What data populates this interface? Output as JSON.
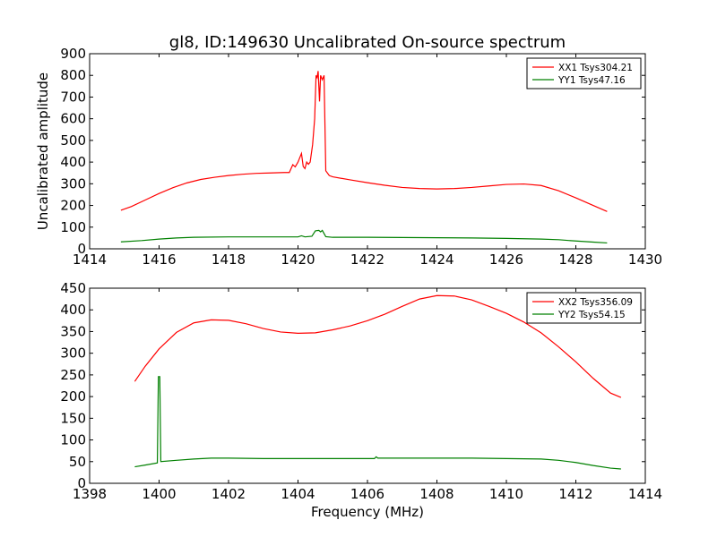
{
  "chart_data": [
    {
      "type": "line",
      "title": "gl8, ID:149630 Uncalibrated On-source spectrum",
      "xlabel": "",
      "ylabel": "Uncalibrated amplitude",
      "xlim": [
        1414,
        1430
      ],
      "ylim": [
        0,
        900
      ],
      "xticks": [
        1414,
        1416,
        1418,
        1420,
        1422,
        1424,
        1426,
        1428,
        1430
      ],
      "yticks": [
        0,
        100,
        200,
        300,
        400,
        500,
        600,
        700,
        800,
        900
      ],
      "legend_position": "top-right",
      "series": [
        {
          "name": "XX1 Tsys304.21",
          "color": "#ff0000",
          "points": [
            [
              1414.9,
              178
            ],
            [
              1415.2,
              195
            ],
            [
              1415.6,
              225
            ],
            [
              1416.0,
              255
            ],
            [
              1416.4,
              282
            ],
            [
              1416.8,
              304
            ],
            [
              1417.2,
              320
            ],
            [
              1417.6,
              330
            ],
            [
              1418.0,
              338
            ],
            [
              1418.4,
              344
            ],
            [
              1418.8,
              348
            ],
            [
              1419.2,
              350
            ],
            [
              1419.6,
              352
            ],
            [
              1419.75,
              352
            ],
            [
              1419.85,
              388
            ],
            [
              1419.92,
              378
            ],
            [
              1420.0,
              400
            ],
            [
              1420.1,
              440
            ],
            [
              1420.15,
              380
            ],
            [
              1420.2,
              370
            ],
            [
              1420.25,
              400
            ],
            [
              1420.3,
              390
            ],
            [
              1420.35,
              400
            ],
            [
              1420.42,
              480
            ],
            [
              1420.48,
              600
            ],
            [
              1420.52,
              800
            ],
            [
              1420.55,
              790
            ],
            [
              1420.58,
              820
            ],
            [
              1420.62,
              680
            ],
            [
              1420.65,
              800
            ],
            [
              1420.7,
              780
            ],
            [
              1420.75,
              800
            ],
            [
              1420.8,
              360
            ],
            [
              1420.9,
              338
            ],
            [
              1421.0,
              332
            ],
            [
              1421.5,
              318
            ],
            [
              1422.0,
              305
            ],
            [
              1422.5,
              293
            ],
            [
              1423.0,
              283
            ],
            [
              1423.5,
              278
            ],
            [
              1424.0,
              276
            ],
            [
              1424.5,
              278
            ],
            [
              1425.0,
              283
            ],
            [
              1425.5,
              290
            ],
            [
              1426.0,
              297
            ],
            [
              1426.5,
              299
            ],
            [
              1427.0,
              292
            ],
            [
              1427.5,
              268
            ],
            [
              1428.0,
              235
            ],
            [
              1428.5,
              200
            ],
            [
              1428.9,
              172
            ]
          ]
        },
        {
          "name": "YY1 Tsys47.16",
          "color": "#008000",
          "points": [
            [
              1414.9,
              32
            ],
            [
              1415.5,
              38
            ],
            [
              1416.0,
              45
            ],
            [
              1416.5,
              50
            ],
            [
              1417.0,
              53
            ],
            [
              1418.0,
              55
            ],
            [
              1419.0,
              55
            ],
            [
              1420.0,
              55
            ],
            [
              1420.1,
              60
            ],
            [
              1420.2,
              55
            ],
            [
              1420.4,
              58
            ],
            [
              1420.5,
              83
            ],
            [
              1420.6,
              85
            ],
            [
              1420.65,
              78
            ],
            [
              1420.7,
              85
            ],
            [
              1420.8,
              56
            ],
            [
              1421.0,
              53
            ],
            [
              1422.0,
              53
            ],
            [
              1423.0,
              52
            ],
            [
              1424.0,
              51
            ],
            [
              1425.0,
              50
            ],
            [
              1426.0,
              48
            ],
            [
              1427.0,
              45
            ],
            [
              1427.5,
              42
            ],
            [
              1428.0,
              36
            ],
            [
              1428.5,
              31
            ],
            [
              1428.9,
              27
            ]
          ]
        }
      ]
    },
    {
      "type": "line",
      "title": "",
      "xlabel": "Frequency (MHz)",
      "ylabel": "",
      "xlim": [
        1398,
        1414
      ],
      "ylim": [
        0,
        450
      ],
      "xticks": [
        1398,
        1400,
        1402,
        1404,
        1406,
        1408,
        1410,
        1412,
        1414
      ],
      "yticks": [
        0,
        50,
        100,
        150,
        200,
        250,
        300,
        350,
        400,
        450
      ],
      "legend_position": "top-right",
      "series": [
        {
          "name": "XX2 Tsys356.09",
          "color": "#ff0000",
          "points": [
            [
              1399.3,
              235
            ],
            [
              1399.6,
              270
            ],
            [
              1400.0,
              310
            ],
            [
              1400.5,
              348
            ],
            [
              1401.0,
              370
            ],
            [
              1401.5,
              377
            ],
            [
              1402.0,
              376
            ],
            [
              1402.5,
              368
            ],
            [
              1403.0,
              357
            ],
            [
              1403.5,
              349
            ],
            [
              1404.0,
              346
            ],
            [
              1404.5,
              347
            ],
            [
              1405.0,
              354
            ],
            [
              1405.5,
              363
            ],
            [
              1406.0,
              375
            ],
            [
              1406.5,
              390
            ],
            [
              1407.0,
              408
            ],
            [
              1407.5,
              425
            ],
            [
              1408.0,
              433
            ],
            [
              1408.5,
              432
            ],
            [
              1409.0,
              423
            ],
            [
              1409.5,
              408
            ],
            [
              1410.0,
              392
            ],
            [
              1410.5,
              372
            ],
            [
              1411.0,
              347
            ],
            [
              1411.5,
              315
            ],
            [
              1412.0,
              280
            ],
            [
              1412.5,
              242
            ],
            [
              1413.0,
              208
            ],
            [
              1413.3,
              198
            ]
          ]
        },
        {
          "name": "YY2 Tsys54.15",
          "color": "#008000",
          "points": [
            [
              1399.3,
              38
            ],
            [
              1399.6,
              42
            ],
            [
              1399.95,
              47
            ],
            [
              1399.98,
              246
            ],
            [
              1400.02,
              246
            ],
            [
              1400.05,
              50
            ],
            [
              1400.5,
              53
            ],
            [
              1401.0,
              56
            ],
            [
              1401.5,
              58
            ],
            [
              1402.0,
              58
            ],
            [
              1403.0,
              57
            ],
            [
              1404.0,
              57
            ],
            [
              1405.0,
              57
            ],
            [
              1406.0,
              57
            ],
            [
              1406.2,
              57
            ],
            [
              1406.25,
              61
            ],
            [
              1406.3,
              58
            ],
            [
              1407.0,
              58
            ],
            [
              1408.0,
              58
            ],
            [
              1409.0,
              58
            ],
            [
              1410.0,
              57
            ],
            [
              1411.0,
              56
            ],
            [
              1411.5,
              53
            ],
            [
              1412.0,
              48
            ],
            [
              1412.5,
              41
            ],
            [
              1413.0,
              35
            ],
            [
              1413.3,
              33
            ]
          ]
        }
      ]
    }
  ]
}
